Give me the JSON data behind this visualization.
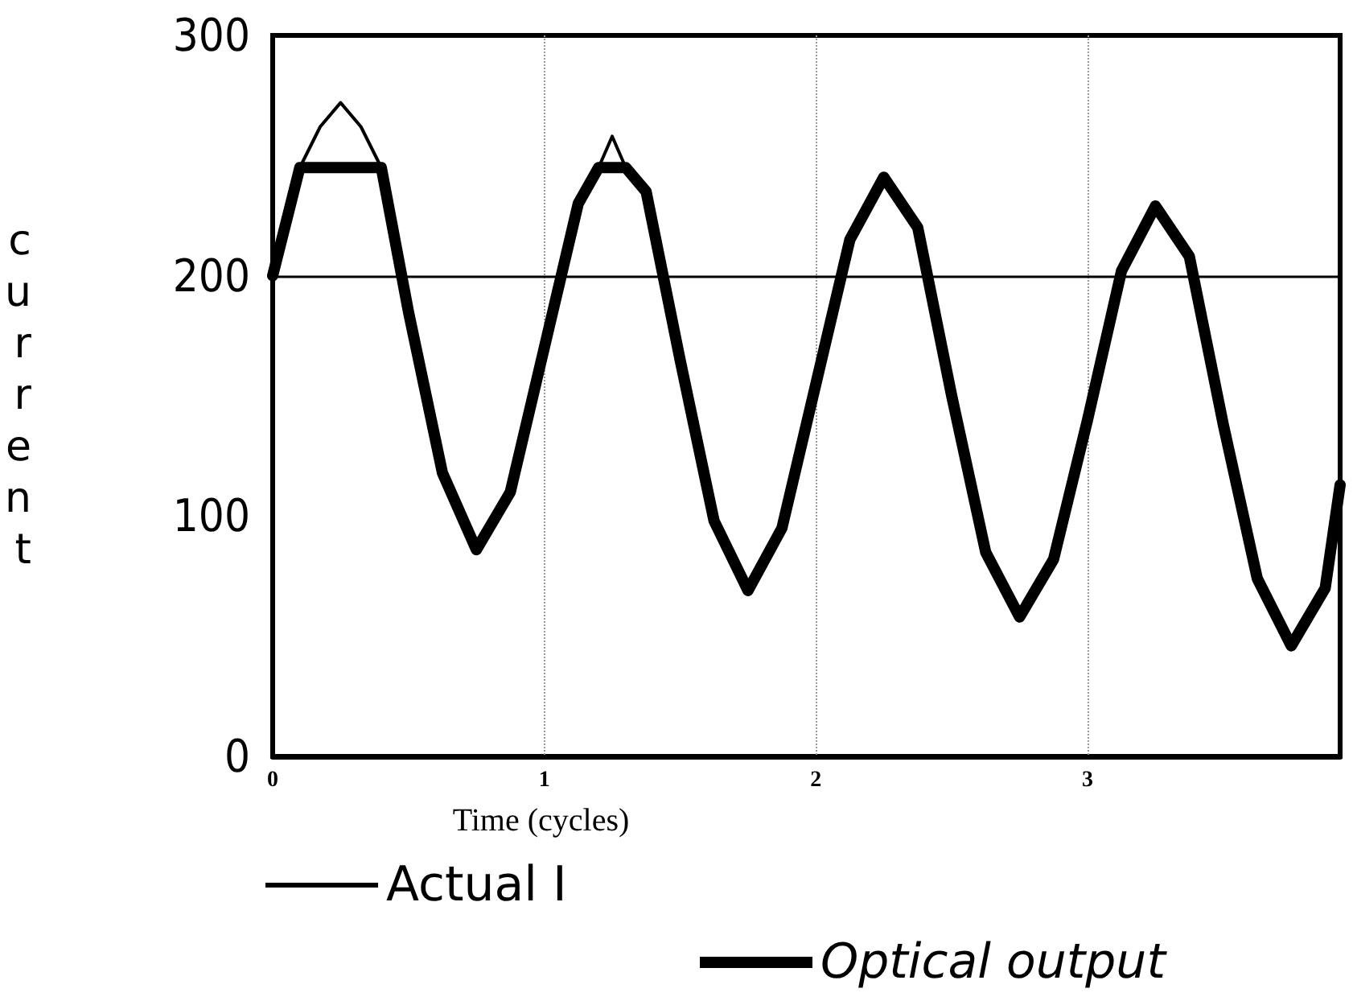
{
  "chart_data": {
    "type": "line",
    "xlabel": "Time (cycles)",
    "ylabel": "current",
    "xlim": [
      0,
      3.93
    ],
    "xticks": [
      0,
      1,
      2,
      3
    ],
    "ylim": [
      0,
      300
    ],
    "yticks": [
      0,
      100,
      200,
      300
    ],
    "grid": "x",
    "legend": "bottom left",
    "marker": "none",
    "line_style": "solid",
    "ref_lines": [
      {
        "axis": "y",
        "value": 200,
        "color": "#000000"
      }
    ],
    "series": [
      {
        "name": "Optical output",
        "color": "#000000",
        "x": [
          0,
          0.1,
          0.125,
          0.25,
          0.375,
          0.4,
          0.5,
          0.625,
          0.75,
          0.875,
          1,
          1.125,
          1.2,
          1.25,
          1.3,
          1.375,
          1.5,
          1.625,
          1.75,
          1.875,
          2,
          2.125,
          2.25,
          2.375,
          2.5,
          2.625,
          2.75,
          2.875,
          3,
          3.125,
          3.25,
          3.375,
          3.5,
          3.625,
          3.75,
          3.875,
          3.93
        ],
        "values": [
          200,
          245,
          245,
          245,
          245,
          245,
          185,
          118,
          86,
          110,
          170,
          230,
          245,
          245,
          245,
          235,
          165,
          98,
          69,
          95,
          155,
          215,
          241,
          220,
          150,
          85,
          58,
          82,
          140,
          202,
          229,
          208,
          138,
          74,
          46,
          70,
          113
        ]
      },
      {
        "name": "Actual I",
        "color": "#000000",
        "x": [
          0.1,
          0.175,
          0.25,
          0.325,
          0.4,
          0.8,
          1.2,
          1.25,
          1.3
        ],
        "values": [
          245,
          262,
          272,
          262,
          245,
          null,
          245,
          258,
          245
        ]
      }
    ]
  }
}
